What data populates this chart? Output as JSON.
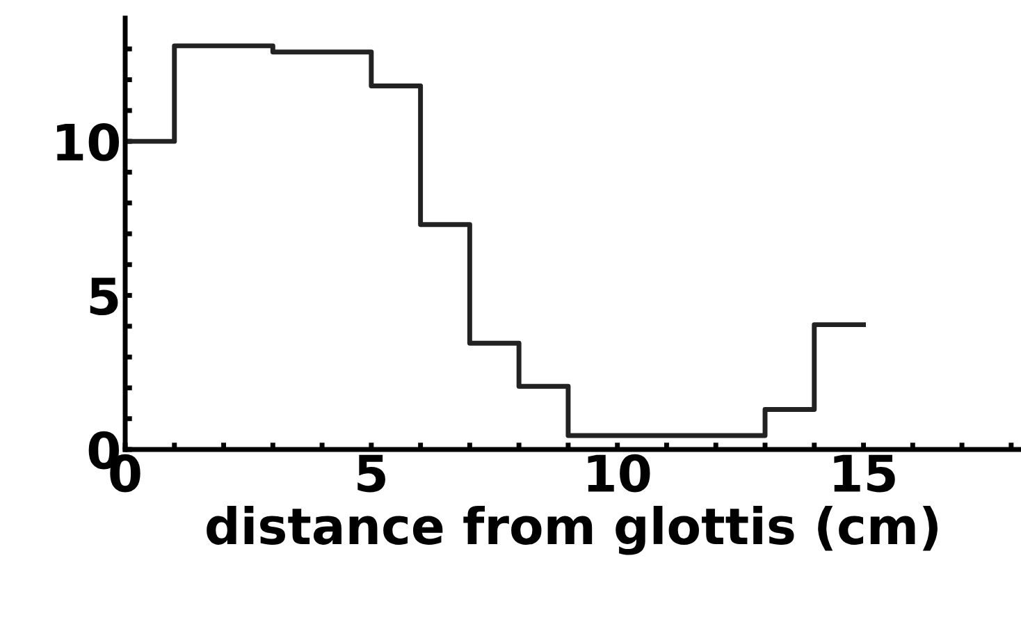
{
  "chart_data": {
    "type": "step",
    "xlabel": "distance from glottis (cm)",
    "x": [
      0,
      1,
      2,
      3,
      4,
      5,
      6,
      7,
      8,
      9,
      10,
      11,
      12,
      13,
      14,
      15
    ],
    "series": [
      {
        "color": "#222222",
        "values": [
          10.0,
          13.1,
          13.1,
          12.9,
          12.9,
          11.8,
          7.3,
          3.45,
          2.05,
          0.45,
          0.45,
          0.45,
          0.45,
          1.3,
          4.05,
          4.05
        ]
      }
    ],
    "xlim": [
      0,
      18.2
    ],
    "ylim": [
      0,
      14
    ],
    "xticks": [
      0,
      {
        "value": 1,
        "label": null
      },
      {
        "value": 2,
        "label": null
      },
      {
        "value": 3,
        "label": null
      },
      {
        "value": 4,
        "label": null
      },
      5,
      {
        "value": 6,
        "label": null
      },
      {
        "value": 7,
        "label": null
      },
      {
        "value": 8,
        "label": null
      },
      {
        "value": 9,
        "label": null
      },
      10,
      {
        "value": 11,
        "label": null
      },
      {
        "value": 12,
        "label": null
      },
      {
        "value": 13,
        "label": null
      },
      {
        "value": 14,
        "label": null
      },
      15,
      {
        "value": 16,
        "label": null
      },
      {
        "value": 17,
        "label": null
      },
      {
        "value": 18,
        "label": null
      }
    ],
    "yticks": [
      0,
      {
        "value": 1,
        "label": null
      },
      {
        "value": 2,
        "label": null
      },
      {
        "value": 3,
        "label": null
      },
      {
        "value": 4,
        "label": null
      },
      5,
      {
        "value": 6,
        "label": null
      },
      {
        "value": 7,
        "label": null
      },
      {
        "value": 8,
        "label": null
      },
      {
        "value": 9,
        "label": null
      },
      10,
      {
        "value": 11,
        "label": null
      },
      {
        "value": 12,
        "label": null
      },
      {
        "value": 13,
        "label": null
      }
    ],
    "grid": false,
    "legend": false,
    "marker": "none",
    "line_style": "solid"
  }
}
